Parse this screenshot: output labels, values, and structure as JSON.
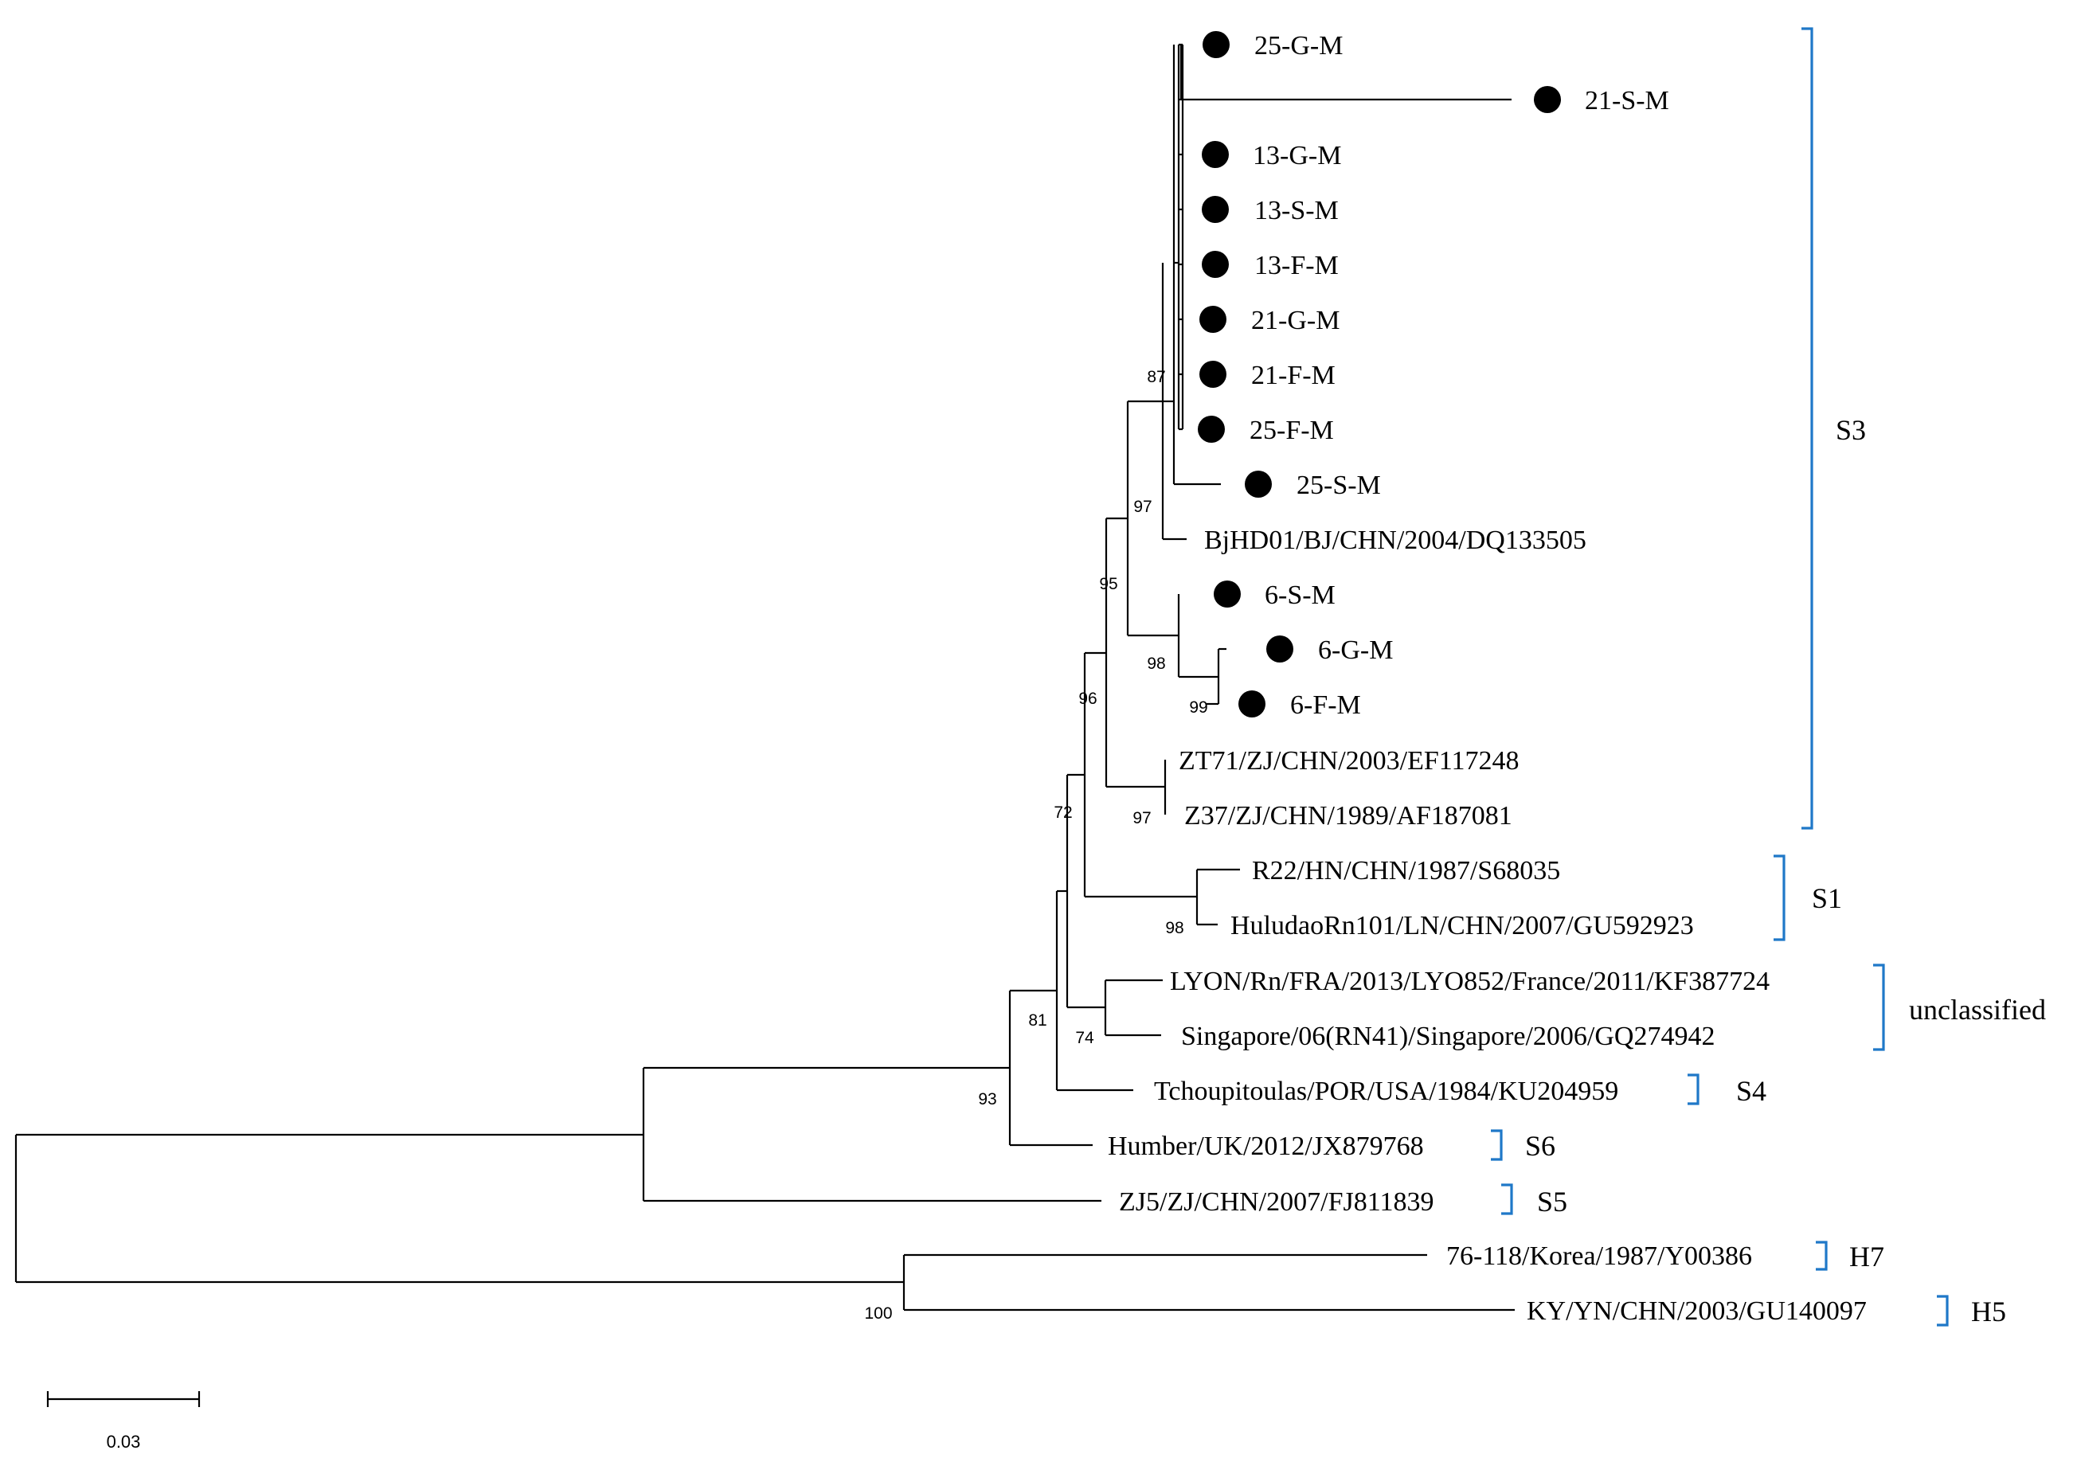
{
  "figure": {
    "type": "phylogenetic-tree",
    "leaves": [
      {
        "id": "l1",
        "label": "25-G-M",
        "marker": true
      },
      {
        "id": "l2",
        "label": "21-S-M",
        "marker": true
      },
      {
        "id": "l3",
        "label": "13-G-M",
        "marker": true
      },
      {
        "id": "l4",
        "label": "13-S-M",
        "marker": true
      },
      {
        "id": "l5",
        "label": "13-F-M",
        "marker": true
      },
      {
        "id": "l6",
        "label": "21-G-M",
        "marker": true
      },
      {
        "id": "l7",
        "label": "21-F-M",
        "marker": true
      },
      {
        "id": "l8",
        "label": "25-F-M",
        "marker": true
      },
      {
        "id": "l9",
        "label": "25-S-M",
        "marker": true
      },
      {
        "id": "l10",
        "label": "BjHD01/BJ/CHN/2004/DQ133505",
        "marker": false
      },
      {
        "id": "l11",
        "label": "6-S-M",
        "marker": true
      },
      {
        "id": "l12",
        "label": "6-G-M",
        "marker": true
      },
      {
        "id": "l13",
        "label": "6-F-M",
        "marker": true
      },
      {
        "id": "l14",
        "label": "ZT71/ZJ/CHN/2003/EF117248",
        "marker": false
      },
      {
        "id": "l15",
        "label": "Z37/ZJ/CHN/1989/AF187081",
        "marker": false
      },
      {
        "id": "l16",
        "label": "R22/HN/CHN/1987/S68035",
        "marker": false
      },
      {
        "id": "l17",
        "label": "HuludaoRn101/LN/CHN/2007/GU592923",
        "marker": false
      },
      {
        "id": "l18",
        "label": "LYON/Rn/FRA/2013/LYO852/France/2011/KF387724",
        "marker": false
      },
      {
        "id": "l19",
        "label": "Singapore/06(RN41)/Singapore/2006/GQ274942",
        "marker": false
      },
      {
        "id": "l20",
        "label": "Tchoupitoulas/POR/USA/1984/KU204959",
        "marker": false
      },
      {
        "id": "l21",
        "label": "Humber/UK/2012/JX879768",
        "marker": false
      },
      {
        "id": "l22",
        "label": "ZJ5/ZJ/CHN/2007/FJ811839",
        "marker": false
      },
      {
        "id": "l23",
        "label": "76-118/Korea/1987/Y00386",
        "marker": false
      },
      {
        "id": "l24",
        "label": "KY/YN/CHN/2003/GU140097",
        "marker": false
      }
    ],
    "bootstrap": [
      {
        "node": "n87",
        "value": "87"
      },
      {
        "node": "n97a",
        "value": "97"
      },
      {
        "node": "n95",
        "value": "95"
      },
      {
        "node": "n98a",
        "value": "98"
      },
      {
        "node": "n99",
        "value": "99"
      },
      {
        "node": "n96",
        "value": "96"
      },
      {
        "node": "n97b",
        "value": "97"
      },
      {
        "node": "n72",
        "value": "72"
      },
      {
        "node": "n98b",
        "value": "98"
      },
      {
        "node": "n74",
        "value": "74"
      },
      {
        "node": "n81",
        "value": "81"
      },
      {
        "node": "n93",
        "value": "93"
      },
      {
        "node": "n100",
        "value": "100"
      }
    ],
    "clades": [
      {
        "name": "S3",
        "from": "l1",
        "to": "l15"
      },
      {
        "name": "S1",
        "from": "l16",
        "to": "l17"
      },
      {
        "name": "unclassified",
        "from": "l18",
        "to": "l19"
      },
      {
        "name": "S4",
        "from": "l20",
        "to": "l20"
      },
      {
        "name": "S6",
        "from": "l21",
        "to": "l21"
      },
      {
        "name": "S5",
        "from": "l22",
        "to": "l22"
      },
      {
        "name": "H7",
        "from": "l23",
        "to": "l23"
      },
      {
        "name": "H5",
        "from": "l24",
        "to": "l24"
      }
    ],
    "scale_bar": {
      "label": "0.03",
      "value": 0.03
    },
    "colors": {
      "bracket": "#1f78c8",
      "branch": "#000000"
    }
  }
}
